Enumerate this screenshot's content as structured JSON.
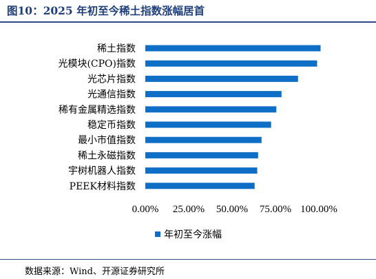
{
  "title": "图10：2025 年初至今稀土指数涨幅居首",
  "source": "数据来源：Wind、开源证券研究所",
  "colors": {
    "bar": "#0f6fc6",
    "title": "#1f3f7a",
    "rule": "#2b4a86"
  },
  "chart_data": {
    "type": "bar",
    "orientation": "horizontal",
    "categories": [
      "稀土指数",
      "光模块(CPO)指数",
      "光芯片指数",
      "光通信指数",
      "稀有金属精选指数",
      "稳定币指数",
      "最小市值指数",
      "稀土永磁指数",
      "宇树机器人指数",
      "PEEK材料指数"
    ],
    "series": [
      {
        "name": "年初至今涨幅",
        "values": [
          101,
          99,
          88,
          78.5,
          75.5,
          72.5,
          67,
          65,
          64.5,
          63
        ]
      }
    ],
    "xlim": [
      0,
      100
    ],
    "xticks": [
      "0.00%",
      "25.00%",
      "50.00%",
      "75.00%",
      "100.00%"
    ],
    "grid": false,
    "legend": "bottom"
  }
}
